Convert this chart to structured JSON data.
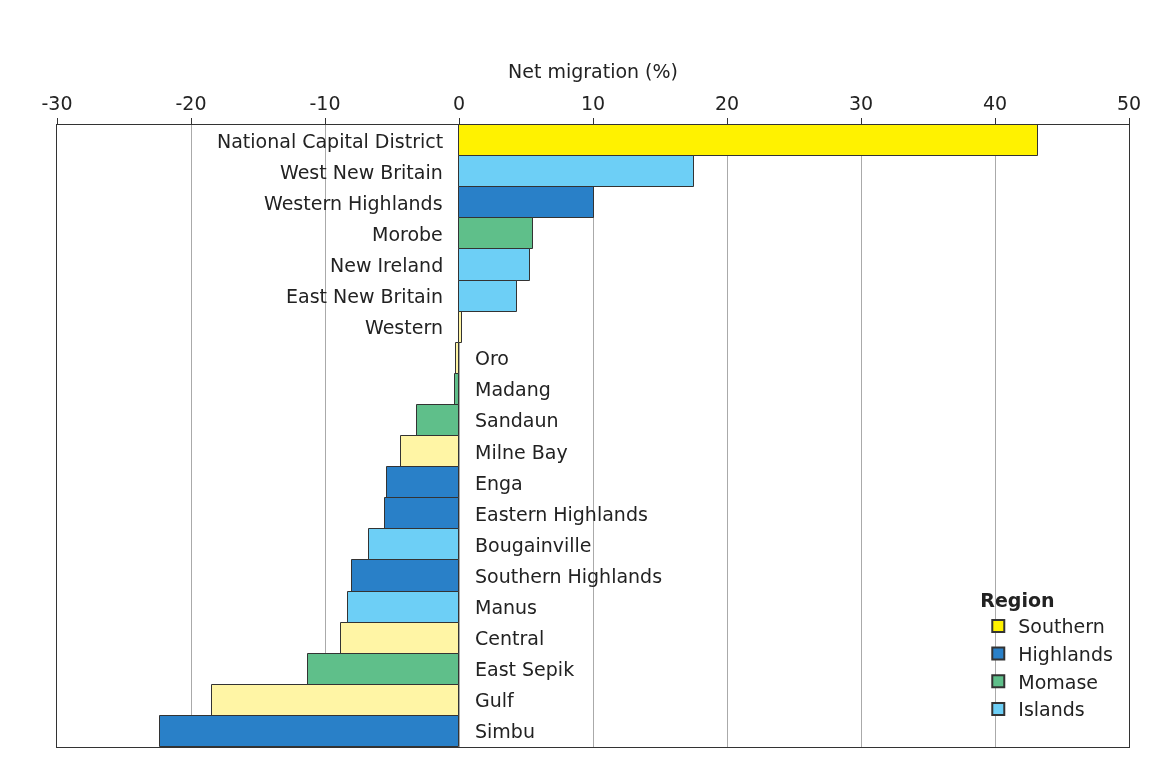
{
  "chart_data": {
    "type": "bar",
    "orientation": "horizontal",
    "xlabel": "Net migration (%)",
    "legend_title": "Region",
    "legend": "bottom right",
    "grid": "x",
    "categories": [
      "National Capital District",
      "West New Britain",
      "Western Highlands",
      "Morobe",
      "New Ireland",
      "East New Britain",
      "Western",
      "Oro",
      "Madang",
      "Sandaun",
      "Milne Bay",
      "Enga",
      "Eastern Highlands",
      "Bougainville",
      "Southern Highlands",
      "Manus",
      "Central",
      "East Sepik",
      "Gulf",
      "Simbu"
    ],
    "xlim": [
      -30,
      50
    ],
    "xticks": [
      -30,
      -20,
      -10,
      0,
      10,
      20,
      30,
      40,
      50
    ],
    "series": [
      {
        "name": "Southern",
        "color": "#fff5a5",
        "colors": [
          "#fff200",
          null,
          null,
          null,
          null,
          null,
          "#fff5a5",
          "#fff5a5",
          null,
          null,
          "#fff5a5",
          null,
          null,
          null,
          null,
          null,
          "#fff5a5",
          null,
          "#fff5a5",
          null
        ],
        "values": [
          43.2,
          null,
          null,
          null,
          null,
          null,
          0.2,
          -0.2,
          null,
          null,
          -4.3,
          null,
          null,
          null,
          null,
          null,
          -8.8,
          null,
          -18.4,
          null
        ]
      },
      {
        "name": "Highlands",
        "color": "#2980c8",
        "values": [
          null,
          null,
          10.1,
          null,
          null,
          null,
          null,
          null,
          null,
          null,
          null,
          -5.4,
          -5.5,
          null,
          -8.0,
          null,
          null,
          null,
          null,
          -22.3
        ]
      },
      {
        "name": "Momase",
        "color": "#5fbf8a",
        "values": [
          null,
          null,
          null,
          5.5,
          null,
          null,
          null,
          null,
          -0.3,
          -3.1,
          null,
          null,
          null,
          null,
          null,
          null,
          null,
          -11.3,
          null,
          null
        ]
      },
      {
        "name": "Islands",
        "color": "#6dcff6",
        "values": [
          null,
          17.5,
          null,
          null,
          5.3,
          4.3,
          null,
          null,
          null,
          null,
          null,
          null,
          null,
          -6.7,
          null,
          -8.3,
          null,
          null,
          null,
          null
        ]
      }
    ]
  }
}
